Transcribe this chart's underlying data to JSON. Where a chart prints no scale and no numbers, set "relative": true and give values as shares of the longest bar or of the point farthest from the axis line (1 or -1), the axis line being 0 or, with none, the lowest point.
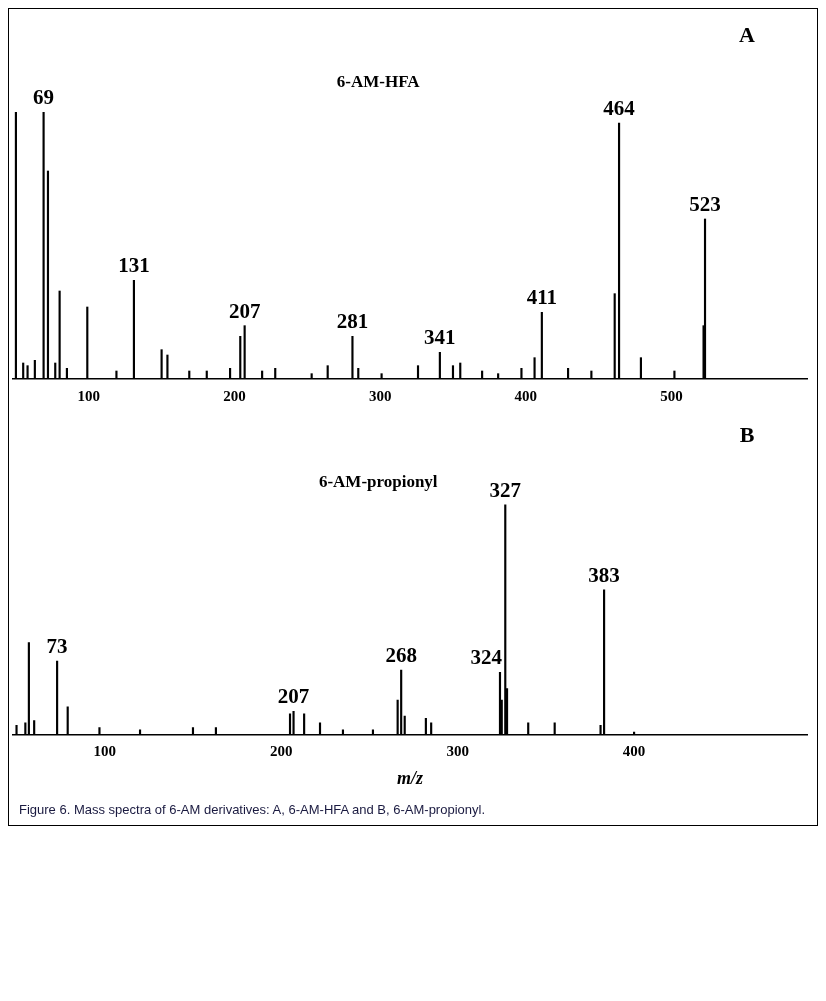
{
  "chart_data": [
    {
      "type": "bar",
      "title": "A",
      "subtitle": "6-AM-HFA",
      "relative": true,
      "tick_labels": "x",
      "xlim": [
        48,
        593
      ],
      "xticks": [
        100,
        200,
        300,
        400,
        500
      ],
      "x": [
        50,
        55,
        58,
        63,
        69,
        72,
        77,
        80,
        85,
        99,
        119,
        131,
        150,
        154,
        169,
        181,
        197,
        204,
        207,
        219,
        228,
        253,
        264,
        281,
        285,
        301,
        326,
        341,
        350,
        355,
        370,
        381,
        397,
        406,
        411,
        429,
        445,
        461,
        464,
        479,
        502,
        522,
        523
      ],
      "series": [
        {
          "color": "#000000",
          "values": [
            1.0,
            0.06,
            0.05,
            0.07,
            1.0,
            0.78,
            0.06,
            0.33,
            0.04,
            0.27,
            0.03,
            0.37,
            0.11,
            0.09,
            0.03,
            0.03,
            0.04,
            0.16,
            0.2,
            0.03,
            0.04,
            0.02,
            0.05,
            0.16,
            0.04,
            0.02,
            0.05,
            0.1,
            0.05,
            0.06,
            0.03,
            0.02,
            0.04,
            0.08,
            0.25,
            0.04,
            0.03,
            0.32,
            0.96,
            0.08,
            0.03,
            0.2,
            0.6
          ]
        }
      ],
      "annotations": [
        {
          "text": "69",
          "x": 69,
          "y": 1.0
        },
        {
          "text": "131",
          "x": 131,
          "y": 0.37
        },
        {
          "text": "207",
          "x": 207,
          "y": 0.2
        },
        {
          "text": "281",
          "x": 281,
          "y": 0.16
        },
        {
          "text": "341",
          "x": 341,
          "y": 0.1
        },
        {
          "text": "411",
          "x": 411,
          "y": 0.25
        },
        {
          "text": "464",
          "x": 464,
          "y": 0.96
        },
        {
          "text": "523",
          "x": 523,
          "y": 0.6
        }
      ]
    },
    {
      "type": "bar",
      "title": "B",
      "subtitle": "6-AM-propionyl",
      "xlabel": "m/z",
      "relative": true,
      "tick_labels": "x",
      "xlim": [
        48,
        498
      ],
      "xticks": [
        100,
        200,
        300,
        400
      ],
      "x": [
        50,
        55,
        57,
        60,
        73,
        79,
        97,
        120,
        150,
        163,
        205,
        207,
        213,
        222,
        235,
        252,
        266,
        268,
        270,
        282,
        285,
        324,
        325,
        327,
        328,
        340,
        355,
        381,
        383,
        400
      ],
      "series": [
        {
          "color": "#000000",
          "values": [
            0.04,
            0.05,
            0.4,
            0.06,
            0.32,
            0.12,
            0.03,
            0.02,
            0.03,
            0.03,
            0.09,
            0.1,
            0.09,
            0.05,
            0.02,
            0.02,
            0.15,
            0.28,
            0.08,
            0.07,
            0.05,
            0.27,
            0.15,
            1.0,
            0.2,
            0.05,
            0.05,
            0.04,
            0.63,
            0.01
          ]
        }
      ],
      "annotations": [
        {
          "text": "73",
          "x": 73,
          "y": 0.32
        },
        {
          "text": "207",
          "x": 207,
          "y": 0.1
        },
        {
          "text": "268",
          "x": 268,
          "y": 0.28
        },
        {
          "text": "324",
          "x": 324,
          "y": 0.27
        },
        {
          "text": "327",
          "x": 327,
          "y": 1.0
        },
        {
          "text": "383",
          "x": 383,
          "y": 0.63
        },
        "Figure 6. Mass spectra of 6-AM derivatives: A, 6-AM-HFA and B, 6-AM-propionyl."
      ]
    }
  ]
}
